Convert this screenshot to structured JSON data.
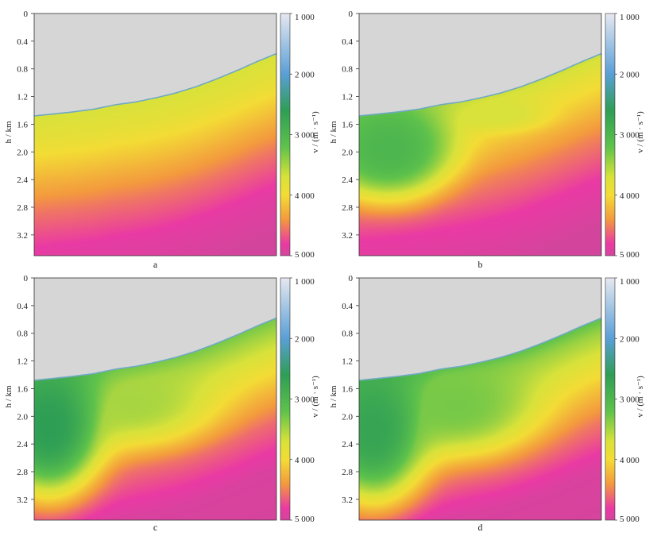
{
  "chart_data": [
    {
      "type": "heatmap",
      "panel_label": "a",
      "ylabel": "h / km",
      "yticks": [
        "0",
        "0.4",
        "0.8",
        "1.2",
        "1.6",
        "2.0",
        "2.4",
        "2.8",
        "3.2"
      ],
      "ylim": [
        0,
        3.5
      ],
      "colorbar": {
        "label": "v / (m · s⁻¹)",
        "ticks": [
          "1 000",
          "2 000",
          "3 000",
          "4 000",
          "5 000"
        ],
        "range": [
          1000,
          5000
        ]
      },
      "seafloor_depth_km": [
        1.48,
        1.45,
        1.42,
        1.38,
        1.32,
        1.28,
        1.22,
        1.15,
        1.06,
        0.95,
        0.83,
        0.7,
        0.58
      ],
      "velocity_model": {
        "type": "gradient",
        "depth_km": [
          0.0,
          0.35,
          0.8,
          1.4,
          2.0,
          2.6,
          3.5
        ],
        "velocity_mps": [
          3700,
          3850,
          4150,
          4550,
          4850,
          5000,
          5000
        ],
        "low_velocity_bodies": []
      }
    },
    {
      "type": "heatmap",
      "panel_label": "b",
      "ylabel": "h / km",
      "yticks": [
        "0",
        "0.4",
        "0.8",
        "1.2",
        "1.6",
        "2.0",
        "2.4",
        "2.8",
        "3.2"
      ],
      "ylim": [
        0,
        3.5
      ],
      "colorbar": {
        "label": "v / (m · s⁻¹)",
        "ticks": [
          "1 000",
          "2 000",
          "3 000",
          "4 000",
          "5 000"
        ],
        "range": [
          1000,
          5000
        ]
      },
      "seafloor_depth_km": [
        1.48,
        1.45,
        1.42,
        1.38,
        1.32,
        1.28,
        1.22,
        1.15,
        1.06,
        0.95,
        0.83,
        0.7,
        0.58
      ],
      "velocity_model": {
        "type": "gradient",
        "depth_km": [
          0.0,
          0.25,
          0.7,
          1.2,
          1.8,
          2.5,
          3.5
        ],
        "velocity_mps": [
          3650,
          3850,
          4150,
          4500,
          4800,
          5000,
          5000
        ],
        "low_velocity_bodies": [
          {
            "x": 0.12,
            "depth_km": 1.95,
            "rx": 0.28,
            "rd_km": 0.75,
            "v": 3000,
            "sharp": 1.6
          },
          {
            "x": 0.55,
            "depth_km": 1.45,
            "rx": 0.22,
            "rd_km": 0.25,
            "v": 3700,
            "sharp": 1.6
          }
        ]
      }
    },
    {
      "type": "heatmap",
      "panel_label": "c",
      "ylabel": "h / km",
      "yticks": [
        "0",
        "0.4",
        "0.8",
        "1.2",
        "1.6",
        "2.0",
        "2.4",
        "2.8",
        "3.2"
      ],
      "ylim": [
        0,
        3.5
      ],
      "colorbar": {
        "label": "v / (m · s⁻¹)",
        "ticks": [
          "1 000",
          "2 000",
          "3 000",
          "4 000",
          "5 000"
        ],
        "range": [
          1000,
          5000
        ]
      },
      "seafloor_depth_km": [
        1.48,
        1.45,
        1.42,
        1.38,
        1.32,
        1.28,
        1.22,
        1.15,
        1.06,
        0.95,
        0.83,
        0.7,
        0.58
      ],
      "velocity_model": {
        "type": "gradient",
        "depth_km": [
          0.0,
          0.2,
          0.6,
          1.0,
          1.5,
          2.2,
          3.5
        ],
        "velocity_mps": [
          3300,
          3500,
          3850,
          4200,
          4600,
          4950,
          5000
        ],
        "low_velocity_bodies": [
          {
            "x": 0.06,
            "depth_km": 2.15,
            "rx": 0.22,
            "rd_km": 1.0,
            "v": 2600,
            "sharp": 1.4
          },
          {
            "x": 0.4,
            "depth_km": 1.8,
            "rx": 0.32,
            "rd_km": 0.6,
            "v": 3500,
            "sharp": 1.4
          }
        ]
      }
    },
    {
      "type": "heatmap",
      "panel_label": "d",
      "ylabel": "h / km",
      "yticks": [
        "0",
        "0.4",
        "0.8",
        "1.2",
        "1.6",
        "2.0",
        "2.4",
        "2.8",
        "3.2"
      ],
      "ylim": [
        0,
        3.5
      ],
      "colorbar": {
        "label": "v / (m · s⁻¹)",
        "ticks": [
          "1 000",
          "2 000",
          "3 000",
          "4 000",
          "5 000"
        ],
        "range": [
          1000,
          5000
        ]
      },
      "seafloor_depth_km": [
        1.48,
        1.45,
        1.42,
        1.38,
        1.32,
        1.28,
        1.22,
        1.15,
        1.06,
        0.95,
        0.83,
        0.7,
        0.58
      ],
      "velocity_model": {
        "type": "gradient",
        "depth_km": [
          0.0,
          0.2,
          0.6,
          1.0,
          1.5,
          2.2,
          3.5
        ],
        "velocity_mps": [
          3200,
          3450,
          3800,
          4150,
          4550,
          4950,
          5000
        ],
        "low_velocity_bodies": [
          {
            "x": 0.06,
            "depth_km": 2.2,
            "rx": 0.22,
            "rd_km": 1.05,
            "v": 2700,
            "sharp": 1.4
          },
          {
            "x": 0.4,
            "depth_km": 1.85,
            "rx": 0.33,
            "rd_km": 0.7,
            "v": 3300,
            "sharp": 1.4
          }
        ]
      }
    }
  ],
  "colors": {
    "water": "#d6d6d6",
    "colormap": [
      {
        "v": 1000,
        "color": "#e6e8f0"
      },
      {
        "v": 2000,
        "color": "#5a9fd6"
      },
      {
        "v": 2600,
        "color": "#2e9e55"
      },
      {
        "v": 3200,
        "color": "#5ec24b"
      },
      {
        "v": 3700,
        "color": "#d8e23a"
      },
      {
        "v": 4000,
        "color": "#f3dc35"
      },
      {
        "v": 4400,
        "color": "#f39a3e"
      },
      {
        "v": 4800,
        "color": "#ea3aa4"
      },
      {
        "v": 5000,
        "color": "#d3459c"
      }
    ]
  }
}
